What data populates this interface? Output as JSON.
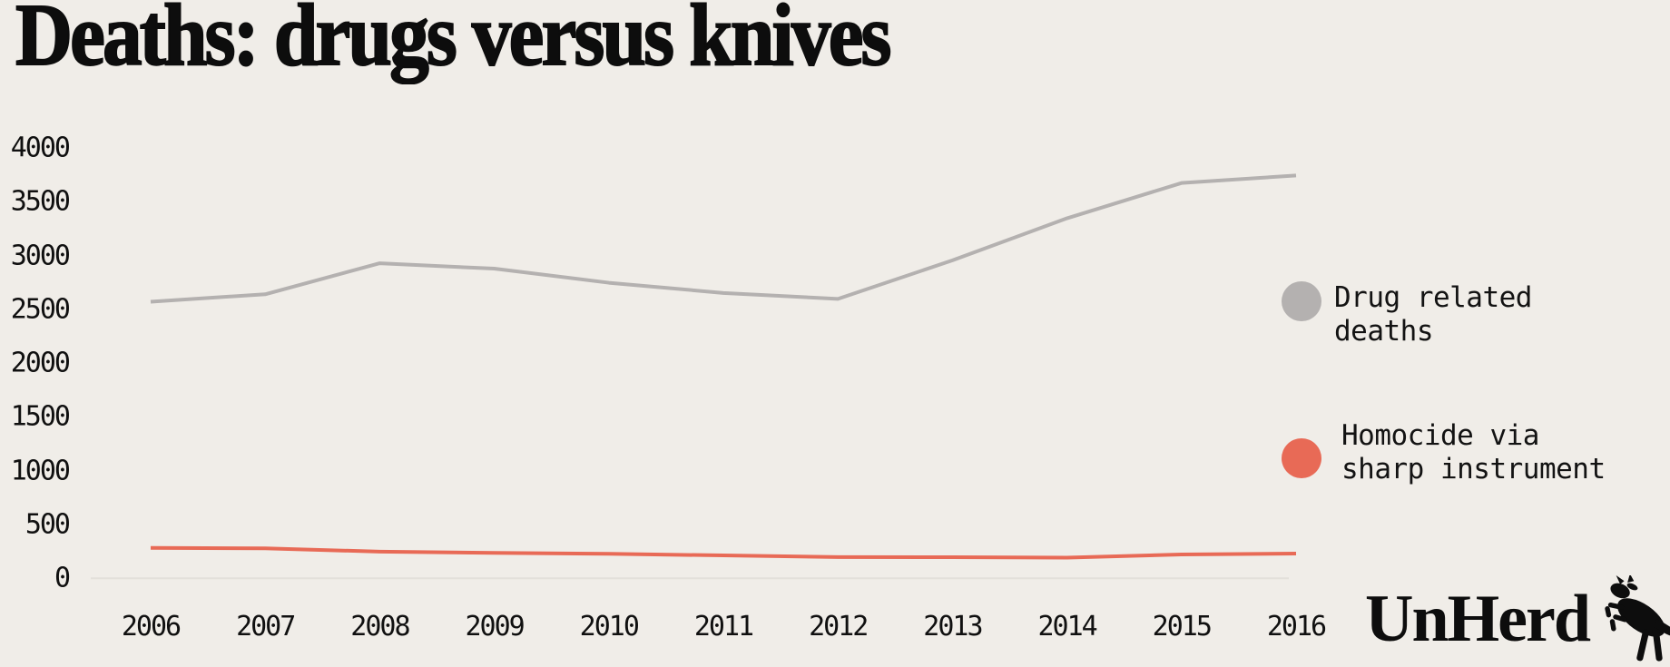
{
  "title": "Deaths: drugs versus knives",
  "colors": {
    "background": "#F0EDE8",
    "text": "#101010",
    "drug_line": "#B4B1B0",
    "knife_line": "#E86A56",
    "gridline": "#E3E0DA"
  },
  "chart_data": {
    "type": "line",
    "title": "Deaths: drugs versus knives",
    "x": [
      2006,
      2007,
      2008,
      2009,
      2010,
      2011,
      2012,
      2013,
      2014,
      2015,
      2016
    ],
    "series": [
      {
        "name": "Drug related deaths",
        "data_name": "drug-related-deaths-line",
        "color_key": "drug_line",
        "values": [
          2571,
          2640,
          2928,
          2878,
          2747,
          2652,
          2597,
          2955,
          3346,
          3674,
          3744
        ]
      },
      {
        "name": "Homocide via sharp instrument",
        "data_name": "sharp-instrument-homicide-line",
        "color_key": "knife_line",
        "values": [
          283,
          279,
          248,
          237,
          228,
          213,
          198,
          196,
          192,
          222,
          230
        ]
      }
    ],
    "xlabel": "",
    "ylabel": "",
    "ylim": [
      0,
      4000
    ],
    "yticks": [
      0,
      500,
      1000,
      1500,
      2000,
      2500,
      3000,
      3500,
      4000
    ],
    "grid": "zero-baseline-only",
    "legend_position": "right"
  },
  "legend": {
    "items": [
      {
        "label_lines": [
          "Drug related",
          "deaths"
        ],
        "color_key": "drug_line"
      },
      {
        "label_lines": [
          "Homocide via",
          "sharp instrument"
        ],
        "color_key": "knife_line"
      }
    ]
  },
  "branding": {
    "logo_text": "UnHerd",
    "logo_icon": "cow-icon"
  }
}
